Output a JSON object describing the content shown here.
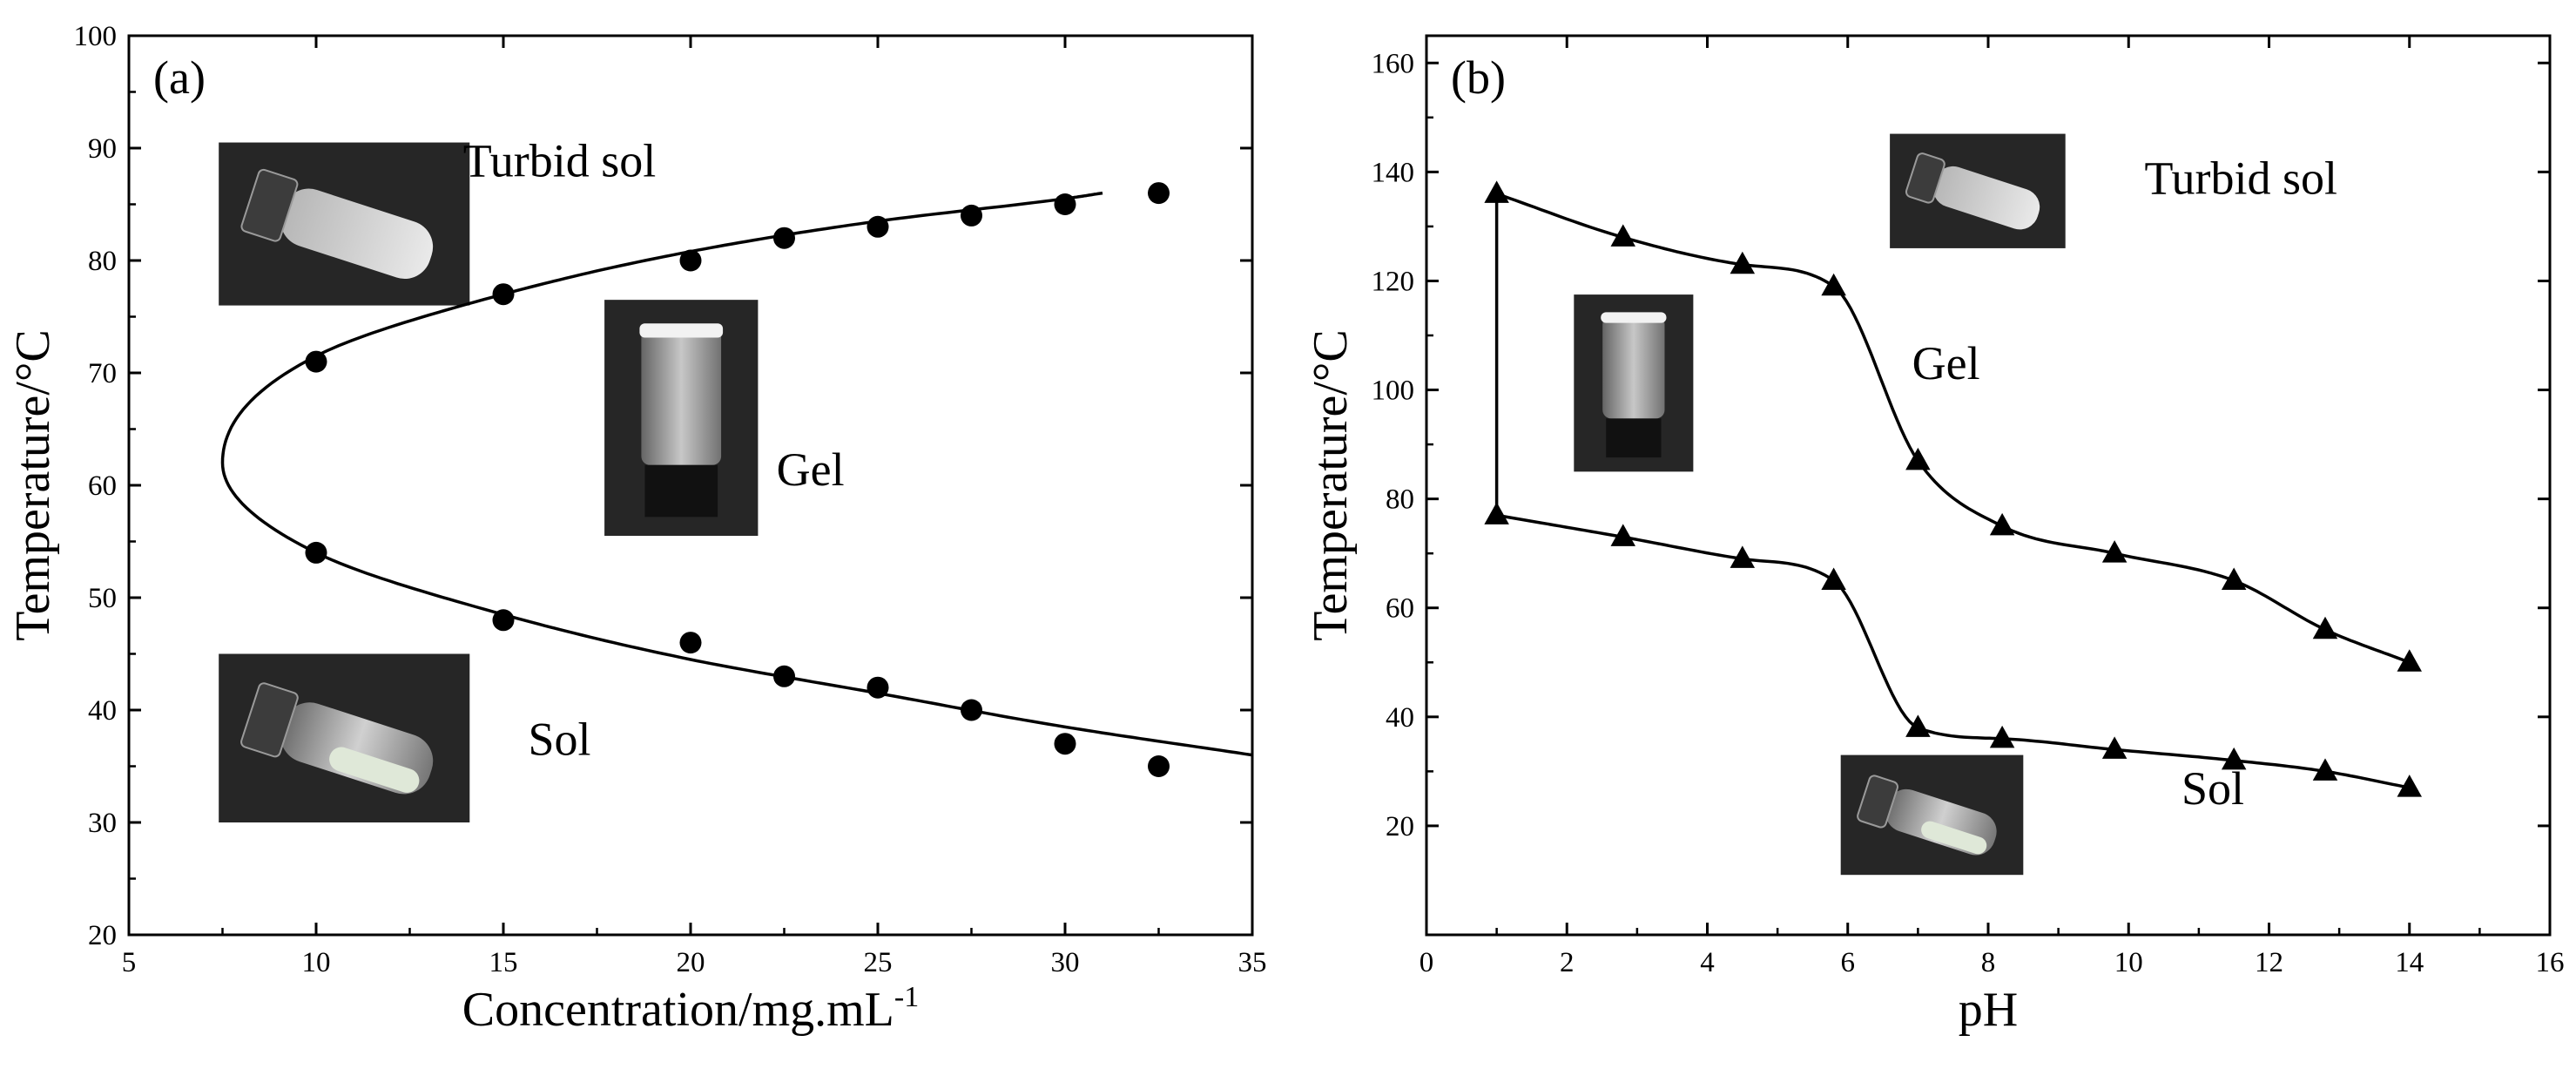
{
  "chart_data": [
    {
      "type": "scatter",
      "panel_label": "(a)",
      "xlabel": "Concentration/mg.mL",
      "xlabel_sup": "-1",
      "ylabel": "Temperature/°C",
      "xlim": [
        5,
        35
      ],
      "ylim": [
        20,
        100
      ],
      "xticks": [
        5,
        10,
        15,
        20,
        25,
        30,
        35
      ],
      "yticks": [
        20,
        30,
        40,
        50,
        60,
        70,
        80,
        90,
        100
      ],
      "grid": false,
      "marker": "circle",
      "series": [
        {
          "x": [
            10,
            15,
            20,
            22.5,
            25,
            27.5,
            30,
            32.5
          ],
          "y": [
            71,
            77,
            80,
            82,
            83,
            84,
            85,
            86
          ]
        },
        {
          "x": [
            10,
            15,
            20,
            22.5,
            25,
            27.5,
            30,
            32.5
          ],
          "y": [
            54,
            48,
            46,
            43,
            42,
            40,
            37,
            35
          ]
        }
      ],
      "fit_curve": {
        "vertex": [
          7.5,
          62
        ],
        "upper": [
          [
            10,
            71.5
          ],
          [
            15,
            77
          ],
          [
            20,
            80.8
          ],
          [
            25,
            83.5
          ],
          [
            30,
            85.5
          ],
          [
            31,
            86
          ]
        ],
        "lower": [
          [
            10,
            54
          ],
          [
            15,
            48.5
          ],
          [
            20,
            44.5
          ],
          [
            25,
            41.5
          ],
          [
            30,
            38.5
          ],
          [
            35,
            36
          ]
        ]
      },
      "region_labels": [
        {
          "text": "Turbid sol",
          "x": 16.5,
          "y": 87.5
        },
        {
          "text": "Gel",
          "x": 23.2,
          "y": 60
        },
        {
          "text": "Sol",
          "x": 16.5,
          "y": 36
        }
      ],
      "photos": [
        {
          "name": "turbid-sol-vial-photo",
          "x0": 7.4,
          "x1": 14.1,
          "y0": 76,
          "y1": 90.5,
          "style": "turbid-tilted"
        },
        {
          "name": "gel-vial-photo",
          "x0": 17.7,
          "x1": 21.8,
          "y0": 55.5,
          "y1": 76.5,
          "style": "upright"
        },
        {
          "name": "sol-vial-photo",
          "x0": 7.4,
          "x1": 14.1,
          "y0": 30,
          "y1": 45,
          "style": "clear-tilted"
        }
      ]
    },
    {
      "type": "line",
      "panel_label": "(b)",
      "xlabel": "pH",
      "ylabel": "Temperature/°C",
      "xlim": [
        0,
        16
      ],
      "ylim": [
        0,
        165
      ],
      "xticks": [
        0,
        2,
        4,
        6,
        8,
        10,
        12,
        14,
        16
      ],
      "yticks": [
        20,
        40,
        60,
        80,
        100,
        120,
        140,
        160
      ],
      "grid": false,
      "marker": "triangle",
      "series": [
        {
          "x": [
            1,
            2.8,
            4.5,
            5.8,
            7,
            8.2,
            9.8,
            11.5,
            12.8,
            14
          ],
          "y": [
            136,
            128,
            123,
            119,
            87,
            75,
            70,
            65,
            56,
            50
          ]
        },
        {
          "x": [
            1,
            2.8,
            4.5,
            5.8,
            7,
            8.2,
            9.8,
            11.5,
            12.8,
            14
          ],
          "y": [
            77,
            73,
            69,
            65,
            38,
            36,
            34,
            32,
            30,
            27
          ]
        }
      ],
      "region_labels": [
        {
          "text": "Turbid sol",
          "x": 11.6,
          "y": 136
        },
        {
          "text": "Gel",
          "x": 7.4,
          "y": 102
        },
        {
          "text": "Sol",
          "x": 11.2,
          "y": 24
        }
      ],
      "photos": [
        {
          "name": "turbid-sol-vial-photo",
          "x0": 6.6,
          "x1": 9.1,
          "y0": 126,
          "y1": 147,
          "style": "turbid-tilted"
        },
        {
          "name": "gel-vial-photo",
          "x0": 2.1,
          "x1": 3.8,
          "y0": 85,
          "y1": 117.5,
          "style": "upright"
        },
        {
          "name": "sol-vial-photo",
          "x0": 5.9,
          "x1": 8.5,
          "y0": 11,
          "y1": 33,
          "style": "clear-tilted"
        }
      ]
    }
  ]
}
